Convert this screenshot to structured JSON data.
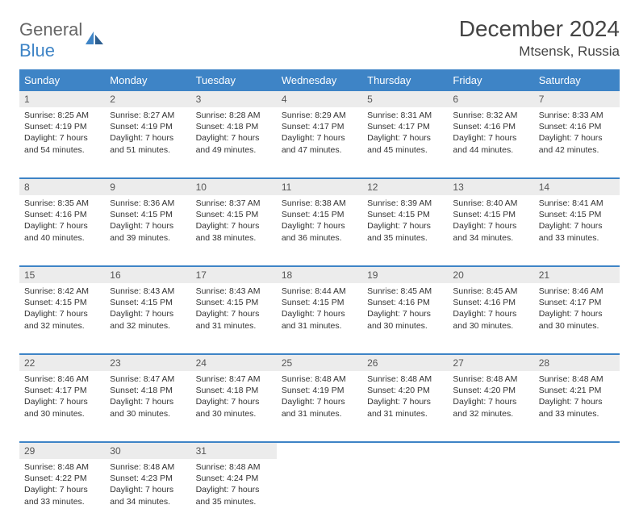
{
  "logo": {
    "text1": "General",
    "text2": "Blue"
  },
  "title": "December 2024",
  "location": "Mtsensk, Russia",
  "colors": {
    "header_bg": "#3e84c6",
    "header_text": "#ffffff",
    "daynum_bg": "#ececec",
    "body_text": "#333333",
    "logo_gray": "#666666",
    "logo_blue": "#3e84c6"
  },
  "dayHeaders": [
    "Sunday",
    "Monday",
    "Tuesday",
    "Wednesday",
    "Thursday",
    "Friday",
    "Saturday"
  ],
  "weeks": [
    [
      {
        "n": "1",
        "sr": "Sunrise: 8:25 AM",
        "ss": "Sunset: 4:19 PM",
        "dl": "Daylight: 7 hours and 54 minutes."
      },
      {
        "n": "2",
        "sr": "Sunrise: 8:27 AM",
        "ss": "Sunset: 4:19 PM",
        "dl": "Daylight: 7 hours and 51 minutes."
      },
      {
        "n": "3",
        "sr": "Sunrise: 8:28 AM",
        "ss": "Sunset: 4:18 PM",
        "dl": "Daylight: 7 hours and 49 minutes."
      },
      {
        "n": "4",
        "sr": "Sunrise: 8:29 AM",
        "ss": "Sunset: 4:17 PM",
        "dl": "Daylight: 7 hours and 47 minutes."
      },
      {
        "n": "5",
        "sr": "Sunrise: 8:31 AM",
        "ss": "Sunset: 4:17 PM",
        "dl": "Daylight: 7 hours and 45 minutes."
      },
      {
        "n": "6",
        "sr": "Sunrise: 8:32 AM",
        "ss": "Sunset: 4:16 PM",
        "dl": "Daylight: 7 hours and 44 minutes."
      },
      {
        "n": "7",
        "sr": "Sunrise: 8:33 AM",
        "ss": "Sunset: 4:16 PM",
        "dl": "Daylight: 7 hours and 42 minutes."
      }
    ],
    [
      {
        "n": "8",
        "sr": "Sunrise: 8:35 AM",
        "ss": "Sunset: 4:16 PM",
        "dl": "Daylight: 7 hours and 40 minutes."
      },
      {
        "n": "9",
        "sr": "Sunrise: 8:36 AM",
        "ss": "Sunset: 4:15 PM",
        "dl": "Daylight: 7 hours and 39 minutes."
      },
      {
        "n": "10",
        "sr": "Sunrise: 8:37 AM",
        "ss": "Sunset: 4:15 PM",
        "dl": "Daylight: 7 hours and 38 minutes."
      },
      {
        "n": "11",
        "sr": "Sunrise: 8:38 AM",
        "ss": "Sunset: 4:15 PM",
        "dl": "Daylight: 7 hours and 36 minutes."
      },
      {
        "n": "12",
        "sr": "Sunrise: 8:39 AM",
        "ss": "Sunset: 4:15 PM",
        "dl": "Daylight: 7 hours and 35 minutes."
      },
      {
        "n": "13",
        "sr": "Sunrise: 8:40 AM",
        "ss": "Sunset: 4:15 PM",
        "dl": "Daylight: 7 hours and 34 minutes."
      },
      {
        "n": "14",
        "sr": "Sunrise: 8:41 AM",
        "ss": "Sunset: 4:15 PM",
        "dl": "Daylight: 7 hours and 33 minutes."
      }
    ],
    [
      {
        "n": "15",
        "sr": "Sunrise: 8:42 AM",
        "ss": "Sunset: 4:15 PM",
        "dl": "Daylight: 7 hours and 32 minutes."
      },
      {
        "n": "16",
        "sr": "Sunrise: 8:43 AM",
        "ss": "Sunset: 4:15 PM",
        "dl": "Daylight: 7 hours and 32 minutes."
      },
      {
        "n": "17",
        "sr": "Sunrise: 8:43 AM",
        "ss": "Sunset: 4:15 PM",
        "dl": "Daylight: 7 hours and 31 minutes."
      },
      {
        "n": "18",
        "sr": "Sunrise: 8:44 AM",
        "ss": "Sunset: 4:15 PM",
        "dl": "Daylight: 7 hours and 31 minutes."
      },
      {
        "n": "19",
        "sr": "Sunrise: 8:45 AM",
        "ss": "Sunset: 4:16 PM",
        "dl": "Daylight: 7 hours and 30 minutes."
      },
      {
        "n": "20",
        "sr": "Sunrise: 8:45 AM",
        "ss": "Sunset: 4:16 PM",
        "dl": "Daylight: 7 hours and 30 minutes."
      },
      {
        "n": "21",
        "sr": "Sunrise: 8:46 AM",
        "ss": "Sunset: 4:17 PM",
        "dl": "Daylight: 7 hours and 30 minutes."
      }
    ],
    [
      {
        "n": "22",
        "sr": "Sunrise: 8:46 AM",
        "ss": "Sunset: 4:17 PM",
        "dl": "Daylight: 7 hours and 30 minutes."
      },
      {
        "n": "23",
        "sr": "Sunrise: 8:47 AM",
        "ss": "Sunset: 4:18 PM",
        "dl": "Daylight: 7 hours and 30 minutes."
      },
      {
        "n": "24",
        "sr": "Sunrise: 8:47 AM",
        "ss": "Sunset: 4:18 PM",
        "dl": "Daylight: 7 hours and 30 minutes."
      },
      {
        "n": "25",
        "sr": "Sunrise: 8:48 AM",
        "ss": "Sunset: 4:19 PM",
        "dl": "Daylight: 7 hours and 31 minutes."
      },
      {
        "n": "26",
        "sr": "Sunrise: 8:48 AM",
        "ss": "Sunset: 4:20 PM",
        "dl": "Daylight: 7 hours and 31 minutes."
      },
      {
        "n": "27",
        "sr": "Sunrise: 8:48 AM",
        "ss": "Sunset: 4:20 PM",
        "dl": "Daylight: 7 hours and 32 minutes."
      },
      {
        "n": "28",
        "sr": "Sunrise: 8:48 AM",
        "ss": "Sunset: 4:21 PM",
        "dl": "Daylight: 7 hours and 33 minutes."
      }
    ],
    [
      {
        "n": "29",
        "sr": "Sunrise: 8:48 AM",
        "ss": "Sunset: 4:22 PM",
        "dl": "Daylight: 7 hours and 33 minutes."
      },
      {
        "n": "30",
        "sr": "Sunrise: 8:48 AM",
        "ss": "Sunset: 4:23 PM",
        "dl": "Daylight: 7 hours and 34 minutes."
      },
      {
        "n": "31",
        "sr": "Sunrise: 8:48 AM",
        "ss": "Sunset: 4:24 PM",
        "dl": "Daylight: 7 hours and 35 minutes."
      },
      null,
      null,
      null,
      null
    ]
  ]
}
